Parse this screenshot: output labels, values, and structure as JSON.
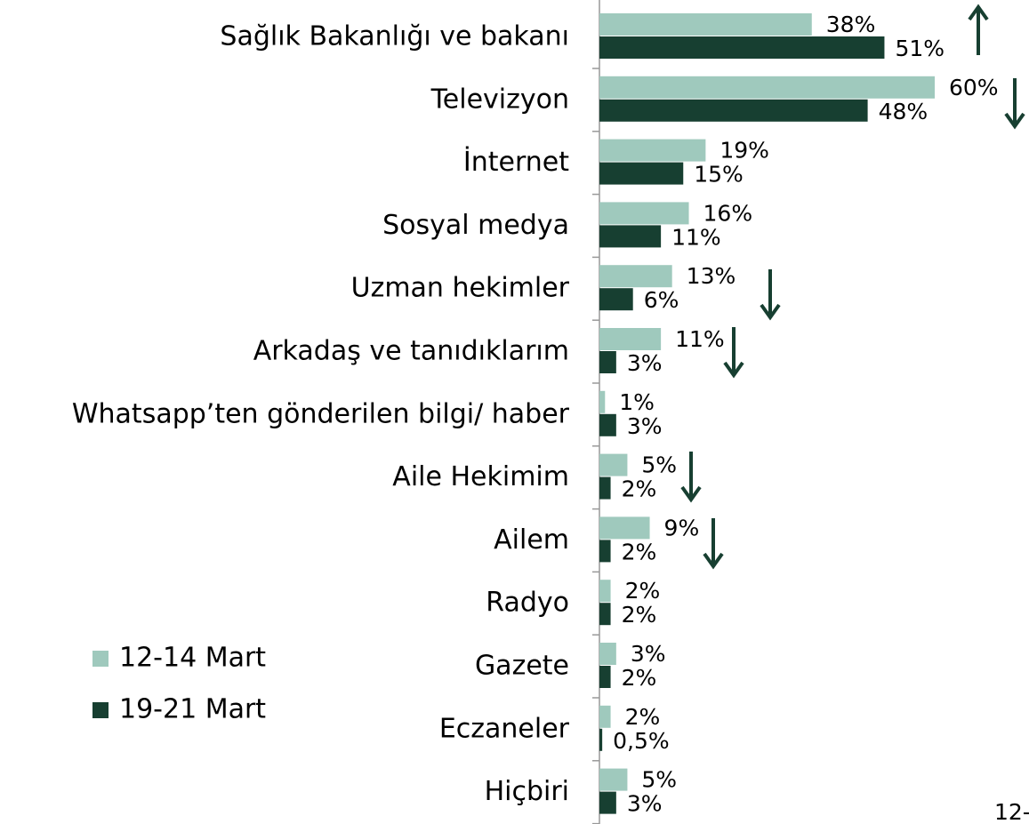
{
  "chart_data": {
    "type": "bar",
    "orientation": "horizontal",
    "categories": [
      "Sağlık Bakanlığı ve bakanı",
      "Televizyon",
      "İnternet",
      "Sosyal medya",
      "Uzman hekimler",
      "Arkadaş ve tanıdıklarım",
      "Whatsapp’ten gönderilen bilgi/ haber",
      "Aile Hekimim",
      "Ailem",
      "Radyo",
      "Gazete",
      "Eczaneler",
      "Hiçbiri"
    ],
    "series": [
      {
        "name": "12-14 Mart",
        "color": "#9fc9bd",
        "values": [
          38,
          60,
          19,
          16,
          13,
          11,
          1,
          5,
          9,
          2,
          3,
          2,
          5
        ],
        "value_labels": [
          "38%",
          "60%",
          "19%",
          "16%",
          "13%",
          "11%",
          "1%",
          "5%",
          "9%",
          "2%",
          "3%",
          "2%",
          "5%"
        ]
      },
      {
        "name": "19-21 Mart",
        "color": "#173f31",
        "values": [
          51,
          48,
          15,
          11,
          6,
          3,
          3,
          2,
          2,
          2,
          2,
          0.5,
          3
        ],
        "value_labels": [
          "51%",
          "48%",
          "15%",
          "11%",
          "6%",
          "3%",
          "3%",
          "2%",
          "2%",
          "2%",
          "2%",
          "0,5%",
          "3%"
        ]
      }
    ],
    "xlim": [
      0,
      60
    ],
    "legend": "bottom-left",
    "annotation": "12-"
  }
}
